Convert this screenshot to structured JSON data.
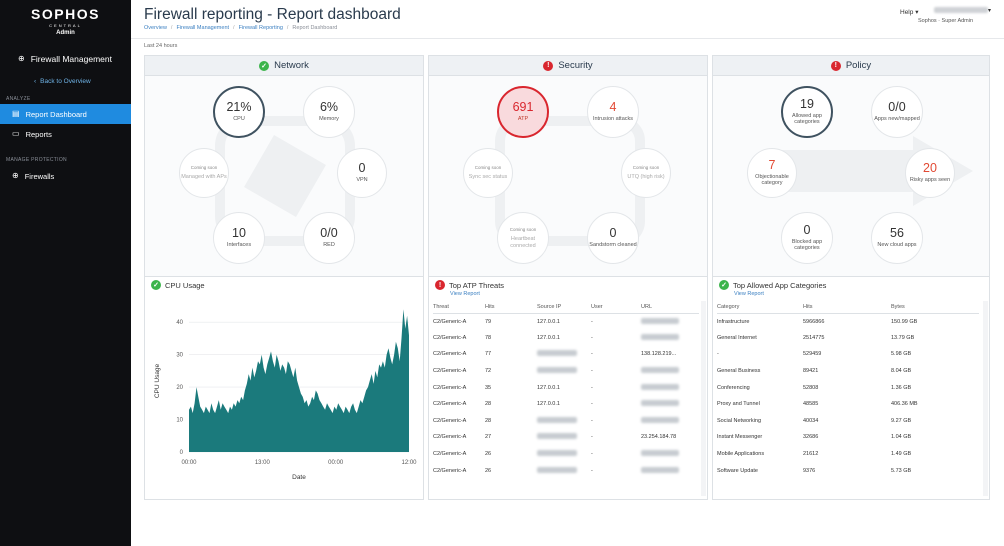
{
  "sidebar": {
    "brand": "SOPHOS",
    "brand_sub": "CENTRAL",
    "brand_role": "Admin",
    "title": "Firewall Management",
    "back_label": "Back to Overview",
    "section_analyze": "ANALYZE",
    "items": [
      {
        "label": "Report Dashboard",
        "icon": "dashboard-icon",
        "active": true
      },
      {
        "label": "Reports",
        "icon": "report-icon",
        "active": false
      }
    ],
    "section_manage": "MANAGE PROTECTION",
    "manage_items": [
      {
        "label": "Firewalls",
        "icon": "globe-icon"
      }
    ]
  },
  "header": {
    "title": "Firewall reporting - Report dashboard",
    "breadcrumbs": [
      "Overview",
      "Firewall Management",
      "Firewall Reporting",
      "Report Dashboard"
    ],
    "help_label": "Help",
    "org_label": "Sophos · Super Admin",
    "timespan": "Last 24 hours"
  },
  "network": {
    "title": "Network",
    "status": "ok",
    "cpu": {
      "value": "21%",
      "label": "CPU"
    },
    "memory": {
      "value": "6%",
      "label": "Memory"
    },
    "managed": {
      "soon": "Coming soon",
      "label": "Managed with APs"
    },
    "vpn": {
      "value": "0",
      "label": "VPN"
    },
    "interfaces": {
      "value": "10",
      "label": "Interfaces"
    },
    "red": {
      "value": "0/0",
      "label": "RED"
    }
  },
  "security": {
    "title": "Security",
    "status": "bad",
    "atp": {
      "value": "691",
      "label": "ATP"
    },
    "intrusion": {
      "value": "4",
      "label": "Intrusion attacks"
    },
    "syncsec": {
      "soon": "Coming soon",
      "label": "Sync sec status"
    },
    "utq": {
      "soon": "Coming soon",
      "label": "UTQ (high risk)"
    },
    "heartbeat": {
      "soon": "Coming soon",
      "label": "Heartbeat connected"
    },
    "sandstorm": {
      "value": "0",
      "label": "Sandstorm cleaned"
    }
  },
  "policy": {
    "title": "Policy",
    "status": "bad",
    "allowed": {
      "value": "19",
      "label": "Allowed app categories"
    },
    "apps": {
      "value": "0/0",
      "label": "Apps new/mapped"
    },
    "objectionable": {
      "value": "7",
      "label": "Objectionable category"
    },
    "risky": {
      "value": "20",
      "label": "Risky apps seen"
    },
    "blocked": {
      "value": "0",
      "label": "Blocked app categories"
    },
    "cloud": {
      "value": "56",
      "label": "New cloud apps"
    }
  },
  "cpu_usage": {
    "title": "CPU Usage"
  },
  "chart_data": {
    "type": "area",
    "title": "",
    "xlabel": "Date",
    "ylabel": "CPU Usage",
    "ylim": [
      0,
      45
    ],
    "yticks": [
      0,
      10,
      20,
      30,
      40
    ],
    "xticks": [
      "00:00",
      "13:00",
      "00:00",
      "12:00"
    ],
    "grid": true,
    "color": "#1b7a7c",
    "series": [
      {
        "values": [
          13,
          14,
          12,
          15,
          20,
          17,
          14,
          13,
          12,
          14,
          13,
          12,
          15,
          13,
          12,
          14,
          16,
          13,
          15,
          14,
          13,
          12,
          14,
          13,
          15,
          14,
          16,
          15,
          17,
          16,
          19,
          21,
          24,
          22,
          26,
          23,
          25,
          28,
          27,
          30,
          26,
          24,
          27,
          29,
          31,
          28,
          26,
          30,
          28,
          25,
          27,
          26,
          24,
          28,
          27,
          25,
          23,
          26,
          22,
          20,
          18,
          17,
          15,
          16,
          14,
          15,
          17,
          16,
          19,
          18,
          16,
          15,
          14,
          13,
          15,
          14,
          13,
          12,
          14,
          13,
          15,
          14,
          13,
          12,
          14,
          13,
          12,
          14,
          15,
          13,
          12,
          14,
          16,
          15,
          17,
          19,
          20,
          22,
          24,
          21,
          25,
          23,
          27,
          26,
          28,
          26,
          30,
          32,
          29,
          27,
          30,
          34,
          32,
          28,
          35,
          44,
          38,
          42,
          36
        ]
      }
    ]
  },
  "atp_threats": {
    "title": "Top ATP Threats",
    "view_report": "View Report",
    "columns": [
      "Threat",
      "Hits",
      "Source IP",
      "User",
      "URL"
    ],
    "rows": [
      {
        "threat": "C2/Generic-A",
        "hits": "79",
        "source": "127.0.0.1",
        "user": "-",
        "url": ""
      },
      {
        "threat": "C2/Generic-A",
        "hits": "78",
        "source": "127.0.0.1",
        "user": "-",
        "url": ""
      },
      {
        "threat": "C2/Generic-A",
        "hits": "77",
        "source": "",
        "user": "-",
        "url": "138.128.219..."
      },
      {
        "threat": "C2/Generic-A",
        "hits": "72",
        "source": "",
        "user": "-",
        "url": ""
      },
      {
        "threat": "C2/Generic-A",
        "hits": "35",
        "source": "127.0.0.1",
        "user": "-",
        "url": ""
      },
      {
        "threat": "C2/Generic-A",
        "hits": "28",
        "source": "127.0.0.1",
        "user": "-",
        "url": ""
      },
      {
        "threat": "C2/Generic-A",
        "hits": "28",
        "source": "",
        "user": "-",
        "url": ""
      },
      {
        "threat": "C2/Generic-A",
        "hits": "27",
        "source": "",
        "user": "-",
        "url": "23.254.184.78"
      },
      {
        "threat": "C2/Generic-A",
        "hits": "26",
        "source": "",
        "user": "-",
        "url": ""
      },
      {
        "threat": "C2/Generic-A",
        "hits": "26",
        "source": "",
        "user": "-",
        "url": ""
      }
    ]
  },
  "app_categories": {
    "title": "Top Allowed App Categories",
    "view_report": "View Report",
    "columns": [
      "Category",
      "Hits",
      "Bytes"
    ],
    "rows": [
      {
        "category": "Infrastructure",
        "hits": "5966866",
        "bytes": "150.99 GB"
      },
      {
        "category": "General Internet",
        "hits": "2514775",
        "bytes": "13.79 GB"
      },
      {
        "category": "-",
        "hits": "529459",
        "bytes": "5.98 GB"
      },
      {
        "category": "General Business",
        "hits": "89421",
        "bytes": "8.04 GB"
      },
      {
        "category": "Conferencing",
        "hits": "52808",
        "bytes": "1.36 GB"
      },
      {
        "category": "Proxy and Tunnel",
        "hits": "48585",
        "bytes": "406.36 MB"
      },
      {
        "category": "Social Networking",
        "hits": "40034",
        "bytes": "9.27 GB"
      },
      {
        "category": "Instant Messenger",
        "hits": "32686",
        "bytes": "1.04 GB"
      },
      {
        "category": "Mobile Applications",
        "hits": "21612",
        "bytes": "1.49 GB"
      },
      {
        "category": "Software Update",
        "hits": "9376",
        "bytes": "5.73 GB"
      }
    ]
  }
}
